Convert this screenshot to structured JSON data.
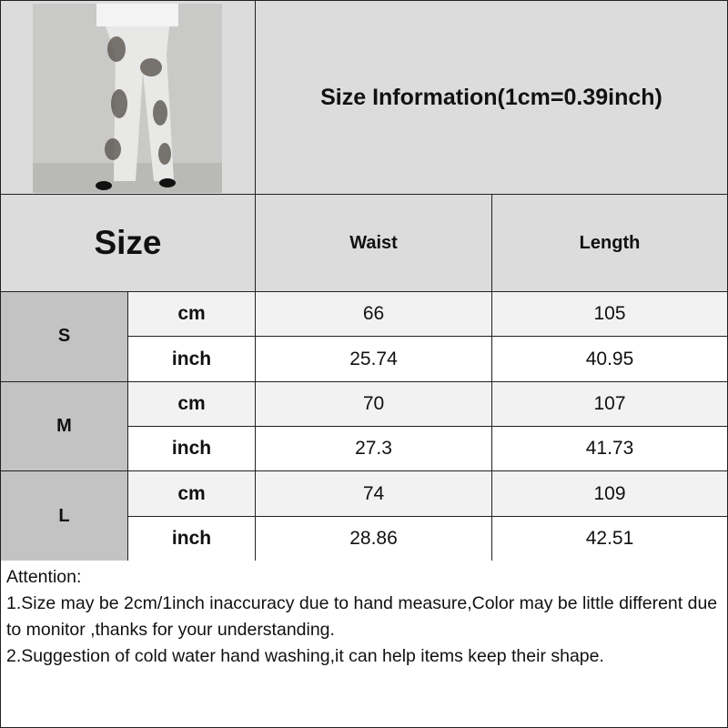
{
  "title": "Size Information(1cm=0.39inch)",
  "header": {
    "size": "Size",
    "waist": "Waist",
    "length": "Length"
  },
  "rows": [
    {
      "size": "S",
      "cm": {
        "unit": "cm",
        "waist": "66",
        "length": "105"
      },
      "inch": {
        "unit": "inch",
        "waist": "25.74",
        "length": "40.95"
      }
    },
    {
      "size": "M",
      "cm": {
        "unit": "cm",
        "waist": "70",
        "length": "107"
      },
      "inch": {
        "unit": "inch",
        "waist": "27.3",
        "length": "41.73"
      }
    },
    {
      "size": "L",
      "cm": {
        "unit": "cm",
        "waist": "74",
        "length": "109"
      },
      "inch": {
        "unit": "inch",
        "waist": "28.86",
        "length": "42.51"
      }
    }
  ],
  "notes": [
    "Attention:",
    "1.Size may be 2cm/1inch inaccuracy due to hand measure,Color may be little different due to monitor ,thanks for your understanding.",
    "2.Suggestion of cold water hand washing,it can help items keep their shape."
  ],
  "colors": {
    "header_bg": "#dcdcdc",
    "size_bg": "#c3c3c3",
    "cm_row_bg": "#f2f2f2",
    "border": "#222222"
  }
}
